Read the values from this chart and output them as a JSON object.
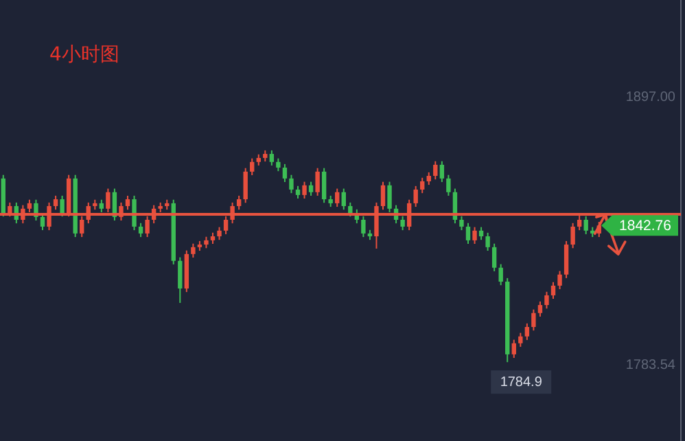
{
  "chart_data": {
    "type": "candlestick",
    "title": "4小时图",
    "categories": [
      null,
      null,
      null,
      null,
      null,
      null,
      null,
      null,
      null,
      null,
      null,
      null,
      null,
      null,
      null,
      null,
      null,
      null,
      null,
      null,
      null,
      null,
      null,
      null,
      null,
      null,
      null,
      null,
      null,
      null,
      null,
      null,
      null,
      null,
      null,
      null,
      null,
      null,
      null,
      null,
      null,
      null,
      null,
      null,
      null,
      null,
      null,
      null,
      null,
      null,
      null,
      null,
      null,
      null,
      null,
      null,
      null,
      null,
      null,
      null,
      null,
      null,
      null,
      null,
      null,
      null,
      null,
      null,
      null,
      null,
      null,
      null,
      null,
      null,
      null,
      null,
      null,
      null,
      null,
      null,
      null,
      null,
      null,
      null,
      null,
      null,
      null,
      null,
      null,
      null,
      null,
      null,
      null,
      null,
      null,
      null,
      null,
      null,
      null,
      null,
      null,
      null,
      null,
      null
    ],
    "ohlc": [
      [
        1862.7,
        1864.2,
        1846.6,
        1848.1
      ],
      [
        1848.1,
        1852.5,
        1846.6,
        1851.0
      ],
      [
        1851.0,
        1852.5,
        1843.7,
        1845.2
      ],
      [
        1845.2,
        1851.4,
        1843.7,
        1849.9
      ],
      [
        1849.9,
        1853.7,
        1848.4,
        1852.2
      ],
      [
        1852.2,
        1853.7,
        1844.9,
        1846.4
      ],
      [
        1846.4,
        1847.9,
        1840.8,
        1842.3
      ],
      [
        1842.3,
        1852.5,
        1840.8,
        1851.0
      ],
      [
        1851.0,
        1855.4,
        1849.5,
        1853.9
      ],
      [
        1853.9,
        1855.4,
        1846.6,
        1848.1
      ],
      [
        1848.1,
        1864.2,
        1846.6,
        1862.7
      ],
      [
        1862.7,
        1864.2,
        1837.9,
        1839.4
      ],
      [
        1839.4,
        1846.7,
        1837.9,
        1845.2
      ],
      [
        1845.2,
        1852.5,
        1843.7,
        1851.0
      ],
      [
        1851.0,
        1853.7,
        1849.5,
        1852.2
      ],
      [
        1852.2,
        1853.7,
        1848.4,
        1849.9
      ],
      [
        1849.9,
        1858.4,
        1848.4,
        1856.9
      ],
      [
        1856.9,
        1858.4,
        1844.9,
        1846.4
      ],
      [
        1846.4,
        1852.5,
        1844.9,
        1851.0
      ],
      [
        1851.0,
        1855.4,
        1849.5,
        1853.9
      ],
      [
        1853.9,
        1855.4,
        1840.8,
        1842.3
      ],
      [
        1842.3,
        1843.8,
        1837.9,
        1839.4
      ],
      [
        1839.4,
        1846.7,
        1837.9,
        1845.2
      ],
      [
        1845.2,
        1851.4,
        1843.7,
        1849.9
      ],
      [
        1849.9,
        1852.5,
        1848.4,
        1851.0
      ],
      [
        1851.0,
        1853.7,
        1849.5,
        1852.2
      ],
      [
        1852.2,
        1853.7,
        1826.3,
        1827.8
      ],
      [
        1827.8,
        1829.3,
        1810.0,
        1816.1
      ],
      [
        1816.1,
        1832.2,
        1814.6,
        1830.7
      ],
      [
        1830.7,
        1835.1,
        1829.2,
        1833.6
      ],
      [
        1833.6,
        1836.2,
        1832.1,
        1834.7
      ],
      [
        1834.7,
        1838.0,
        1833.2,
        1836.5
      ],
      [
        1836.5,
        1839.7,
        1835.0,
        1838.2
      ],
      [
        1838.2,
        1842.1,
        1836.7,
        1840.6
      ],
      [
        1840.6,
        1846.7,
        1839.1,
        1845.2
      ],
      [
        1845.2,
        1852.5,
        1843.7,
        1851.0
      ],
      [
        1851.0,
        1855.4,
        1849.5,
        1853.9
      ],
      [
        1853.9,
        1867.1,
        1852.4,
        1865.6
      ],
      [
        1865.6,
        1871.2,
        1864.1,
        1869.7
      ],
      [
        1869.7,
        1872.9,
        1868.2,
        1871.4
      ],
      [
        1871.4,
        1874.6,
        1869.9,
        1873.1
      ],
      [
        1873.1,
        1874.6,
        1868.2,
        1869.7
      ],
      [
        1869.7,
        1871.2,
        1865.8,
        1867.3
      ],
      [
        1867.3,
        1868.8,
        1861.2,
        1862.7
      ],
      [
        1862.7,
        1864.2,
        1856.5,
        1858.0
      ],
      [
        1858.0,
        1859.5,
        1854.2,
        1855.7
      ],
      [
        1855.7,
        1861.3,
        1854.2,
        1859.8
      ],
      [
        1859.8,
        1861.3,
        1855.4,
        1856.9
      ],
      [
        1856.9,
        1867.1,
        1855.4,
        1865.6
      ],
      [
        1865.6,
        1867.1,
        1852.4,
        1853.9
      ],
      [
        1853.9,
        1855.4,
        1850.7,
        1852.2
      ],
      [
        1852.2,
        1858.4,
        1850.7,
        1856.9
      ],
      [
        1856.9,
        1858.4,
        1849.5,
        1851.0
      ],
      [
        1851.0,
        1852.5,
        1846.6,
        1848.1
      ],
      [
        1848.1,
        1849.6,
        1843.7,
        1845.2
      ],
      [
        1845.2,
        1846.7,
        1837.9,
        1839.4
      ],
      [
        1839.4,
        1840.9,
        1836.7,
        1838.2
      ],
      [
        1838.2,
        1852.5,
        1833.0,
        1851.0
      ],
      [
        1851.0,
        1861.3,
        1849.5,
        1859.8
      ],
      [
        1859.8,
        1861.3,
        1848.4,
        1849.9
      ],
      [
        1849.9,
        1851.4,
        1843.7,
        1845.2
      ],
      [
        1845.2,
        1846.7,
        1840.8,
        1842.3
      ],
      [
        1842.3,
        1853.7,
        1840.8,
        1852.2
      ],
      [
        1852.2,
        1859.5,
        1850.7,
        1858.0
      ],
      [
        1858.0,
        1863.0,
        1856.5,
        1861.5
      ],
      [
        1861.5,
        1865.3,
        1860.0,
        1863.8
      ],
      [
        1863.8,
        1870.0,
        1862.3,
        1868.5
      ],
      [
        1868.5,
        1870.0,
        1861.2,
        1862.7
      ],
      [
        1862.7,
        1864.2,
        1855.4,
        1856.9
      ],
      [
        1856.9,
        1858.4,
        1843.7,
        1845.2
      ],
      [
        1845.2,
        1846.7,
        1840.8,
        1842.3
      ],
      [
        1842.3,
        1843.8,
        1835.0,
        1836.5
      ],
      [
        1836.5,
        1842.1,
        1835.0,
        1840.6
      ],
      [
        1840.6,
        1842.1,
        1836.7,
        1838.2
      ],
      [
        1838.2,
        1839.7,
        1832.1,
        1833.6
      ],
      [
        1833.6,
        1835.1,
        1823.4,
        1824.9
      ],
      [
        1824.9,
        1826.4,
        1817.5,
        1819.0
      ],
      [
        1819.0,
        1820.5,
        1784.9,
        1788.2
      ],
      [
        1788.2,
        1794.4,
        1786.7,
        1792.9
      ],
      [
        1792.9,
        1797.3,
        1791.4,
        1795.8
      ],
      [
        1795.8,
        1801.3,
        1794.3,
        1799.8
      ],
      [
        1799.8,
        1807.2,
        1798.3,
        1805.7
      ],
      [
        1805.7,
        1810.6,
        1804.2,
        1809.1
      ],
      [
        1809.1,
        1814.7,
        1807.6,
        1813.2
      ],
      [
        1813.2,
        1818.8,
        1811.7,
        1817.3
      ],
      [
        1817.3,
        1823.5,
        1815.8,
        1822.0
      ],
      [
        1822.0,
        1836.2,
        1820.5,
        1834.7
      ],
      [
        1834.7,
        1843.8,
        1833.2,
        1842.3
      ],
      [
        1842.3,
        1848.0,
        1840.8,
        1845.2
      ],
      [
        1845.2,
        1846.7,
        1839.1,
        1840.6
      ],
      [
        1840.6,
        1842.1,
        1837.9,
        1839.4
      ],
      [
        1839.4,
        1844.3,
        1837.9,
        1842.76
      ],
      null,
      null,
      null,
      null,
      null,
      null,
      null,
      null,
      null,
      null,
      null,
      null
    ],
    "colors": [
      "#3dbd55",
      "#e84f3d",
      "#3dbd55",
      "#e84f3d",
      "#e84f3d",
      "#3dbd55",
      "#3dbd55",
      "#e84f3d",
      "#e84f3d",
      "#3dbd55",
      "#e84f3d",
      "#3dbd55",
      "#e84f3d",
      "#e84f3d",
      "#e84f3d",
      "#3dbd55",
      "#e84f3d",
      "#3dbd55",
      "#e84f3d",
      "#e84f3d",
      "#3dbd55",
      "#3dbd55",
      "#e84f3d",
      "#e84f3d",
      "#e84f3d",
      "#e84f3d",
      "#3dbd55",
      "#3dbd55",
      "#e84f3d",
      "#e84f3d",
      "#e84f3d",
      "#e84f3d",
      "#e84f3d",
      "#e84f3d",
      "#e84f3d",
      "#e84f3d",
      "#e84f3d",
      "#e84f3d",
      "#e84f3d",
      "#e84f3d",
      "#e84f3d",
      "#3dbd55",
      "#3dbd55",
      "#3dbd55",
      "#3dbd55",
      "#3dbd55",
      "#e84f3d",
      "#3dbd55",
      "#e84f3d",
      "#3dbd55",
      "#3dbd55",
      "#e84f3d",
      "#3dbd55",
      "#3dbd55",
      "#3dbd55",
      "#3dbd55",
      "#3dbd55",
      "#e84f3d",
      "#e84f3d",
      "#3dbd55",
      "#3dbd55",
      "#3dbd55",
      "#e84f3d",
      "#e84f3d",
      "#e84f3d",
      "#e84f3d",
      "#e84f3d",
      "#3dbd55",
      "#3dbd55",
      "#3dbd55",
      "#3dbd55",
      "#3dbd55",
      "#e84f3d",
      "#3dbd55",
      "#3dbd55",
      "#3dbd55",
      "#3dbd55",
      "#3dbd55",
      "#e84f3d",
      "#e84f3d",
      "#e84f3d",
      "#e84f3d",
      "#e84f3d",
      "#e84f3d",
      "#e84f3d",
      "#e84f3d",
      "#e84f3d",
      "#e84f3d",
      "#e84f3d",
      "#3dbd55",
      "#3dbd55",
      "#e84f3d",
      null,
      null,
      null,
      null,
      null,
      null,
      null,
      null,
      null,
      null,
      null,
      null
    ],
    "ylim": [
      1751.5,
      1938.3
    ],
    "yticks": [
      {
        "value": 1897.0,
        "label": "1897.00"
      },
      {
        "value": 1783.54,
        "label": "1783.54"
      }
    ],
    "ref_lines": [
      {
        "axis": "y",
        "value": 1847.5,
        "color": "#e8533f"
      }
    ],
    "annotations": [
      "1842.76",
      "1784.9"
    ]
  }
}
